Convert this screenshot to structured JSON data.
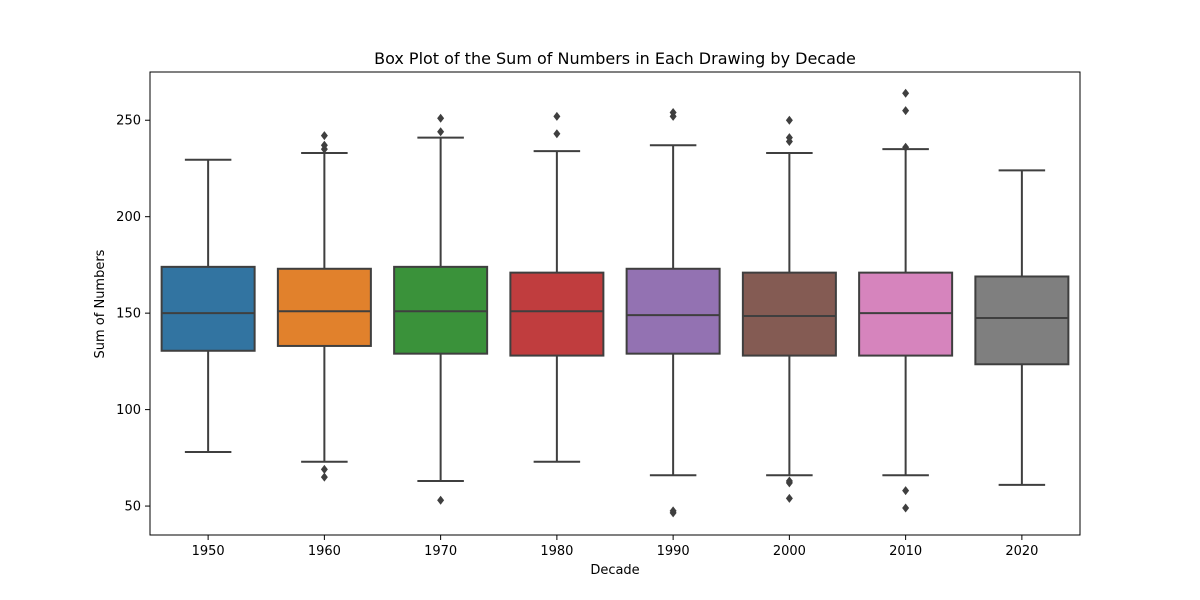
{
  "chart_data": {
    "type": "box",
    "title": "Box Plot of the Sum of Numbers in Each Drawing by Decade",
    "xlabel": "Decade",
    "ylabel": "Sum of Numbers",
    "ylim": [
      35,
      275
    ],
    "yticks": [
      50,
      100,
      150,
      200,
      250
    ],
    "grid": false,
    "categories": [
      "1950",
      "1960",
      "1970",
      "1980",
      "1990",
      "2000",
      "2010",
      "2020"
    ],
    "colors": [
      "#3274a1",
      "#e1812c",
      "#3a923a",
      "#c03d3e",
      "#9372b2",
      "#845b53",
      "#d684bd",
      "#7f7f7f"
    ],
    "boxes": [
      {
        "decade": "1950",
        "whisker_low": 78,
        "q1": 130.5,
        "median": 150,
        "q3": 174,
        "whisker_high": 229.5,
        "outliers": []
      },
      {
        "decade": "1960",
        "whisker_low": 73,
        "q1": 133,
        "median": 151,
        "q3": 173,
        "whisker_high": 233,
        "outliers": [
          65,
          69,
          235,
          237,
          242
        ]
      },
      {
        "decade": "1970",
        "whisker_low": 63,
        "q1": 129,
        "median": 151,
        "q3": 174,
        "whisker_high": 241,
        "outliers": [
          53,
          244,
          251
        ]
      },
      {
        "decade": "1980",
        "whisker_low": 73,
        "q1": 128,
        "median": 151,
        "q3": 171,
        "whisker_high": 234,
        "outliers": [
          243,
          252
        ]
      },
      {
        "decade": "1990",
        "whisker_low": 66,
        "q1": 129,
        "median": 149,
        "q3": 173,
        "whisker_high": 237,
        "outliers": [
          46.5,
          47.5,
          252,
          254
        ]
      },
      {
        "decade": "2000",
        "whisker_low": 66,
        "q1": 128,
        "median": 148.5,
        "q3": 171,
        "whisker_high": 233,
        "outliers": [
          54,
          62,
          63,
          239,
          241,
          250
        ]
      },
      {
        "decade": "2010",
        "whisker_low": 66,
        "q1": 128,
        "median": 150,
        "q3": 171,
        "whisker_high": 235,
        "outliers": [
          49,
          58,
          236,
          255,
          264
        ]
      },
      {
        "decade": "2020",
        "whisker_low": 61,
        "q1": 123.5,
        "median": 147.5,
        "q3": 169,
        "whisker_high": 224,
        "outliers": []
      }
    ]
  }
}
